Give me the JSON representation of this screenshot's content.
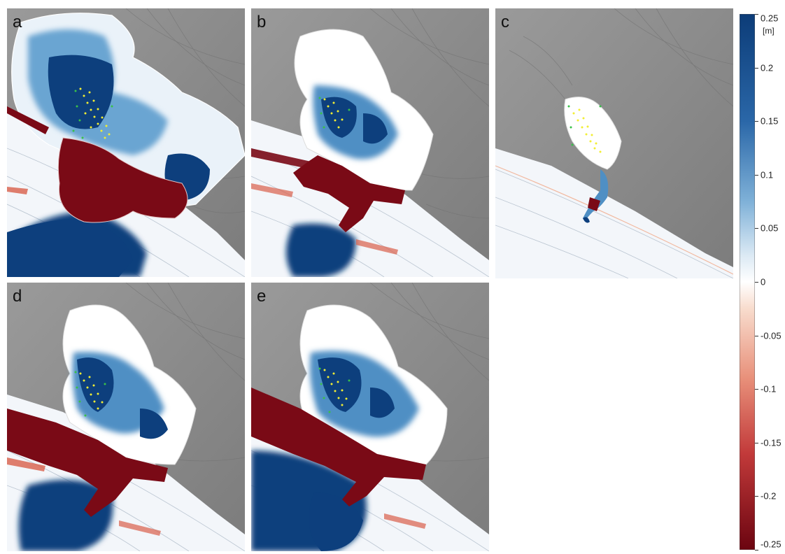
{
  "panels": [
    {
      "id": "a",
      "label": "a",
      "flooding": "strong"
    },
    {
      "id": "b",
      "label": "b",
      "flooding": "moderate"
    },
    {
      "id": "c",
      "label": "c",
      "flooding": "weak"
    },
    {
      "id": "d",
      "label": "d",
      "flooding": "moderate"
    },
    {
      "id": "e",
      "label": "e",
      "flooding": "strong"
    }
  ],
  "colorbar": {
    "unit": "[m]",
    "min": -0.25,
    "max": 0.25,
    "colormap": "red-white-blue",
    "colors": {
      "max": "#0c3c78",
      "mid": "#ffffff",
      "min": "#6b0410"
    },
    "ticks": [
      {
        "value": 0.25,
        "label": "0.25"
      },
      {
        "value": 0.2,
        "label": "0.2"
      },
      {
        "value": 0.15,
        "label": "0.15"
      },
      {
        "value": 0.1,
        "label": "0.1"
      },
      {
        "value": 0.05,
        "label": "0.05"
      },
      {
        "value": 0,
        "label": "0"
      },
      {
        "value": -0.05,
        "label": "-0.05"
      },
      {
        "value": -0.1,
        "label": "-0.1"
      },
      {
        "value": -0.15,
        "label": "-0.15"
      },
      {
        "value": -0.2,
        "label": "-0.2"
      },
      {
        "value": -0.25,
        "label": "-0.25"
      }
    ]
  },
  "map_colors": {
    "terrain": "#8e8e8e",
    "sea": "#f3f6fa",
    "deep_blue": "#0d3f7d",
    "mid_blue": "#4f8fc4",
    "light_blue": "#c4dcee",
    "dark_red": "#7a0a16",
    "light_red": "#f2b9a0",
    "points_yellow": "#f2ee33",
    "points_green": "#39c049"
  }
}
